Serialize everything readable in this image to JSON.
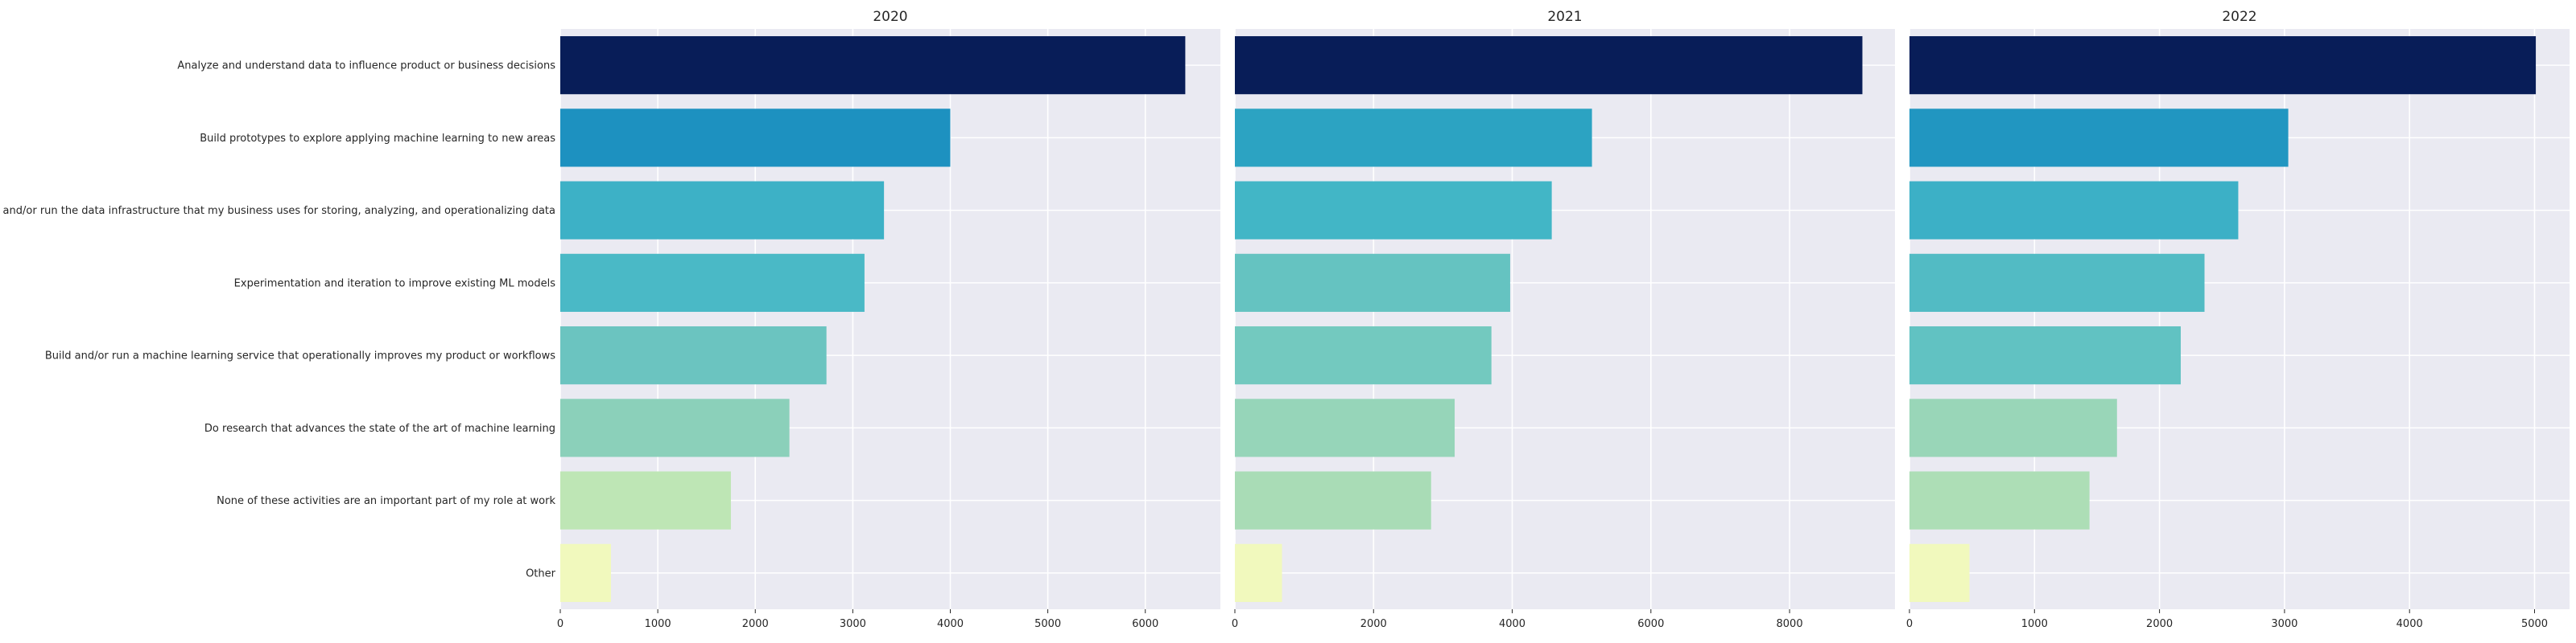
{
  "chart_data": {
    "type": "bar",
    "orientation": "horizontal",
    "grid": true,
    "categories": [
      "Analyze and understand data to influence product or business decisions",
      "Build prototypes to explore applying machine learning to new areas",
      "Build and/or run the data infrastructure that my business uses for storing, analyzing, and operationalizing data",
      "Experimentation and iteration to improve existing ML models",
      "Build and/or run a machine learning service that operationally improves my product or workflows",
      "Do research that advances the state of the art of machine learning",
      "None of these activities are an important part of my role at work",
      "Other"
    ],
    "panels": [
      {
        "title": "2020",
        "xlim": [
          0,
          6770
        ],
        "xticks": [
          0,
          1000,
          2000,
          3000,
          4000,
          5000,
          6000
        ],
        "values": [
          6410,
          4000,
          3320,
          3120,
          2730,
          2350,
          1750,
          520
        ],
        "colors": [
          "#081d58",
          "#1d91c0",
          "#3db1c6",
          "#4ab9c6",
          "#6bc4c0",
          "#8bd0ba",
          "#bee6b5",
          "#f1f9bd"
        ]
      },
      {
        "title": "2021",
        "xlim": [
          0,
          9520
        ],
        "xticks": [
          0,
          2000,
          4000,
          6000,
          8000
        ],
        "values": [
          9050,
          5150,
          4570,
          3970,
          3700,
          3170,
          2830,
          680
        ],
        "colors": [
          "#081d58",
          "#2ca3c2",
          "#42b6c6",
          "#65c3c1",
          "#73c9bf",
          "#96d5b9",
          "#a9dcb6",
          "#f1f9bd"
        ]
      },
      {
        "title": "2022",
        "xlim": [
          0,
          5280
        ],
        "xticks": [
          0,
          1000,
          2000,
          3000,
          4000,
          5000
        ],
        "values": [
          5010,
          3030,
          2630,
          2360,
          2170,
          1660,
          1440,
          480
        ],
        "colors": [
          "#081d58",
          "#2196c1",
          "#3cb0c6",
          "#52bbc4",
          "#61c2c2",
          "#99d6b8",
          "#addeb6",
          "#f1f9bd"
        ]
      }
    ]
  }
}
